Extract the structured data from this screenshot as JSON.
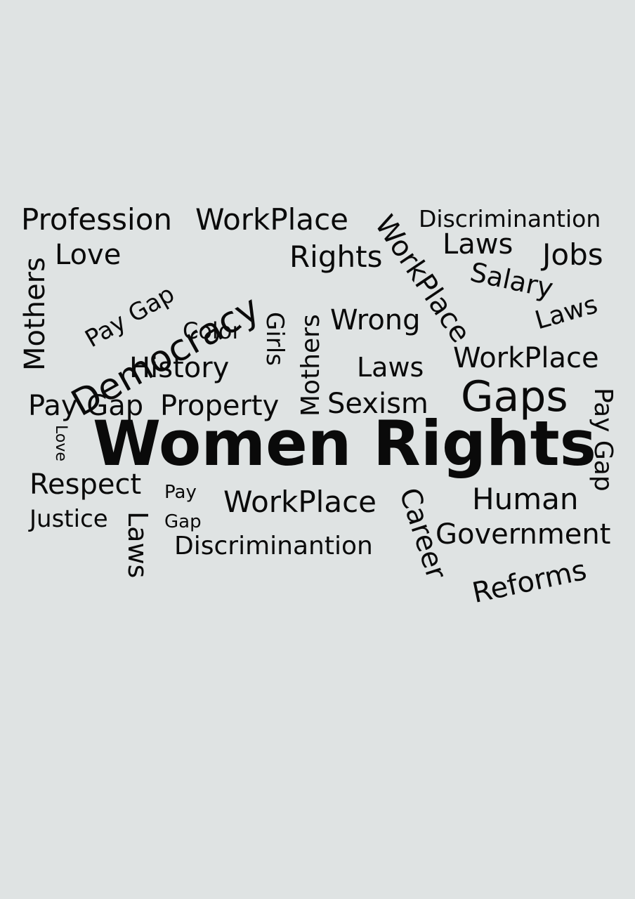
{
  "background_color": "#dfe3e3",
  "text_color": "#0a0a0a",
  "words": {
    "profession": "Profession",
    "workplace_top": "WorkPlace",
    "workplace_diag": "WorkPlace",
    "discrimination_top": "Discriminantion",
    "mothers_left": "Mothers",
    "love_top": "Love",
    "pay_gap_diag": "Pay Gap",
    "democracy": "Democracy",
    "rights": "Rights",
    "laws_top": "Laws",
    "jobs": "Jobs",
    "salary": "Salary",
    "laws_tilt": "Laws",
    "color": "Color",
    "girls": "Girls",
    "mothers_mid": "Mothers",
    "wrong": "Wrong",
    "history": "History",
    "laws_mid": "Laws",
    "workplace_right": "WorkPlace",
    "pay_gap_left": "Pay Gap",
    "property": "Property",
    "sexism": "Sexism",
    "gaps": "Gaps",
    "pay_gap_vertical": "Pay Gap",
    "love_small": "Love",
    "title": "Women Rights",
    "respect": "Respect",
    "pay_small": "Pay",
    "gap_small": "Gap",
    "workplace_bottom": "WorkPlace",
    "career": "Career",
    "human": "Human",
    "justice": "Justice",
    "laws_vertical": "Laws",
    "discrimination_bottom": "Discriminantion",
    "government": "Government",
    "reforms": "Reforms"
  }
}
